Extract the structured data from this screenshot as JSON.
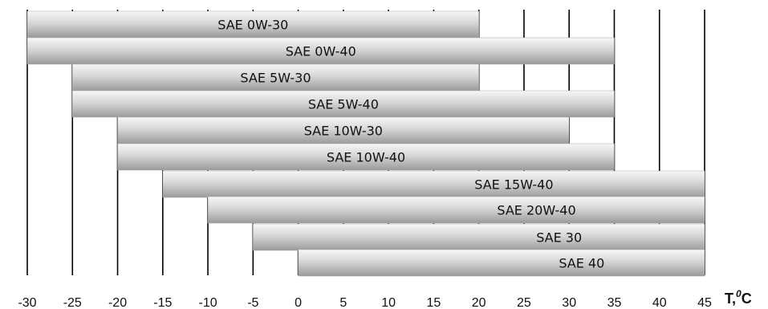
{
  "chart_data": {
    "type": "bar",
    "orientation": "horizontal",
    "categories": [
      "SAE 0W-30",
      "SAE 0W-40",
      "SAE 5W-30",
      "SAE 5W-40",
      "SAE 10W-30",
      "SAE 10W-40",
      "SAE 15W-40",
      "SAE 20W-40",
      "SAE 30",
      "SAE 40"
    ],
    "ranges": [
      [
        -30,
        20
      ],
      [
        -30,
        35
      ],
      [
        -25,
        20
      ],
      [
        -25,
        35
      ],
      [
        -20,
        30
      ],
      [
        -20,
        35
      ],
      [
        -15,
        45
      ],
      [
        -10,
        45
      ],
      [
        -5,
        45
      ],
      [
        0,
        45
      ]
    ],
    "xlim": [
      -30,
      45
    ],
    "xticks": [
      -30,
      -25,
      -20,
      -15,
      -10,
      -5,
      0,
      5,
      10,
      15,
      20,
      25,
      30,
      35,
      40,
      45
    ],
    "xtick_labels": [
      "-30",
      "-25",
      "-20",
      "-15",
      "-10",
      "-5",
      "0",
      "5",
      "10",
      "15",
      "20",
      "25",
      "30",
      "35",
      "40",
      "45"
    ],
    "xlabel": "T,°C",
    "xlabel_parts": {
      "main": "T,",
      "sup": "0",
      "unit": "C"
    },
    "grid": "vertical lines at each tick",
    "bar_gradient": {
      "light": "#f7f7f7",
      "mid": "#d6d6d6",
      "dark": "#9a9a9a"
    },
    "gridline_color": "#000000",
    "bar_outline_color": "#a8a8a8"
  }
}
